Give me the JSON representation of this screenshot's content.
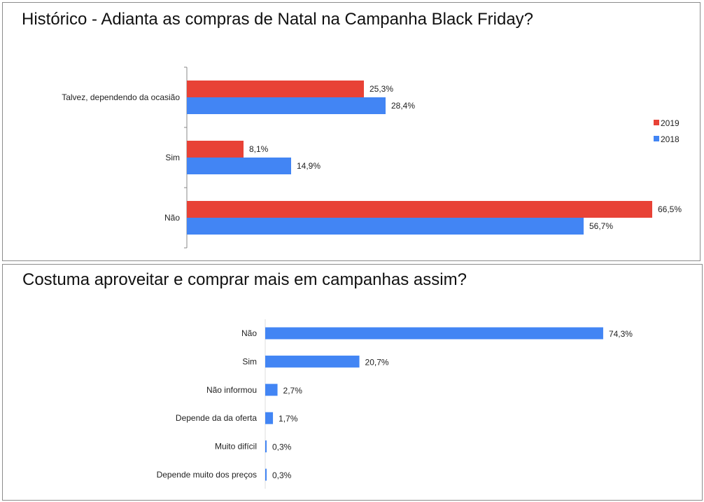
{
  "chart_data": [
    {
      "type": "bar",
      "orientation": "horizontal",
      "title": "Histórico - Adianta as compras de Natal na Campanha Black Friday?",
      "categories": [
        "Talvez, dependendo da ocasião",
        "Sim",
        "Não"
      ],
      "series": [
        {
          "name": "2019",
          "color": "#e84236",
          "values": [
            25.3,
            8.1,
            66.5
          ],
          "labels": [
            "25,3%",
            "8,1%",
            "66,5%"
          ]
        },
        {
          "name": "2018",
          "color": "#4285f4",
          "values": [
            28.4,
            14.9,
            56.7
          ],
          "labels": [
            "28,4%",
            "14,9%",
            "56,7%"
          ]
        }
      ],
      "legend": "right",
      "grid": false
    },
    {
      "type": "bar",
      "orientation": "horizontal",
      "title": "Costuma aproveitar e comprar mais em campanhas assim?",
      "categories": [
        "Não",
        "Sim",
        "Não informou",
        "Depende da da oferta",
        "Muito difícil",
        "Depende muito dos preços"
      ],
      "series": [
        {
          "color": "#4285f4",
          "values": [
            74.3,
            20.7,
            2.7,
            1.7,
            0.3,
            0.3
          ],
          "labels": [
            "74,3%",
            "20,7%",
            "2,7%",
            "1,7%",
            "0,3%",
            "0,3%"
          ]
        }
      ],
      "grid": false
    }
  ]
}
